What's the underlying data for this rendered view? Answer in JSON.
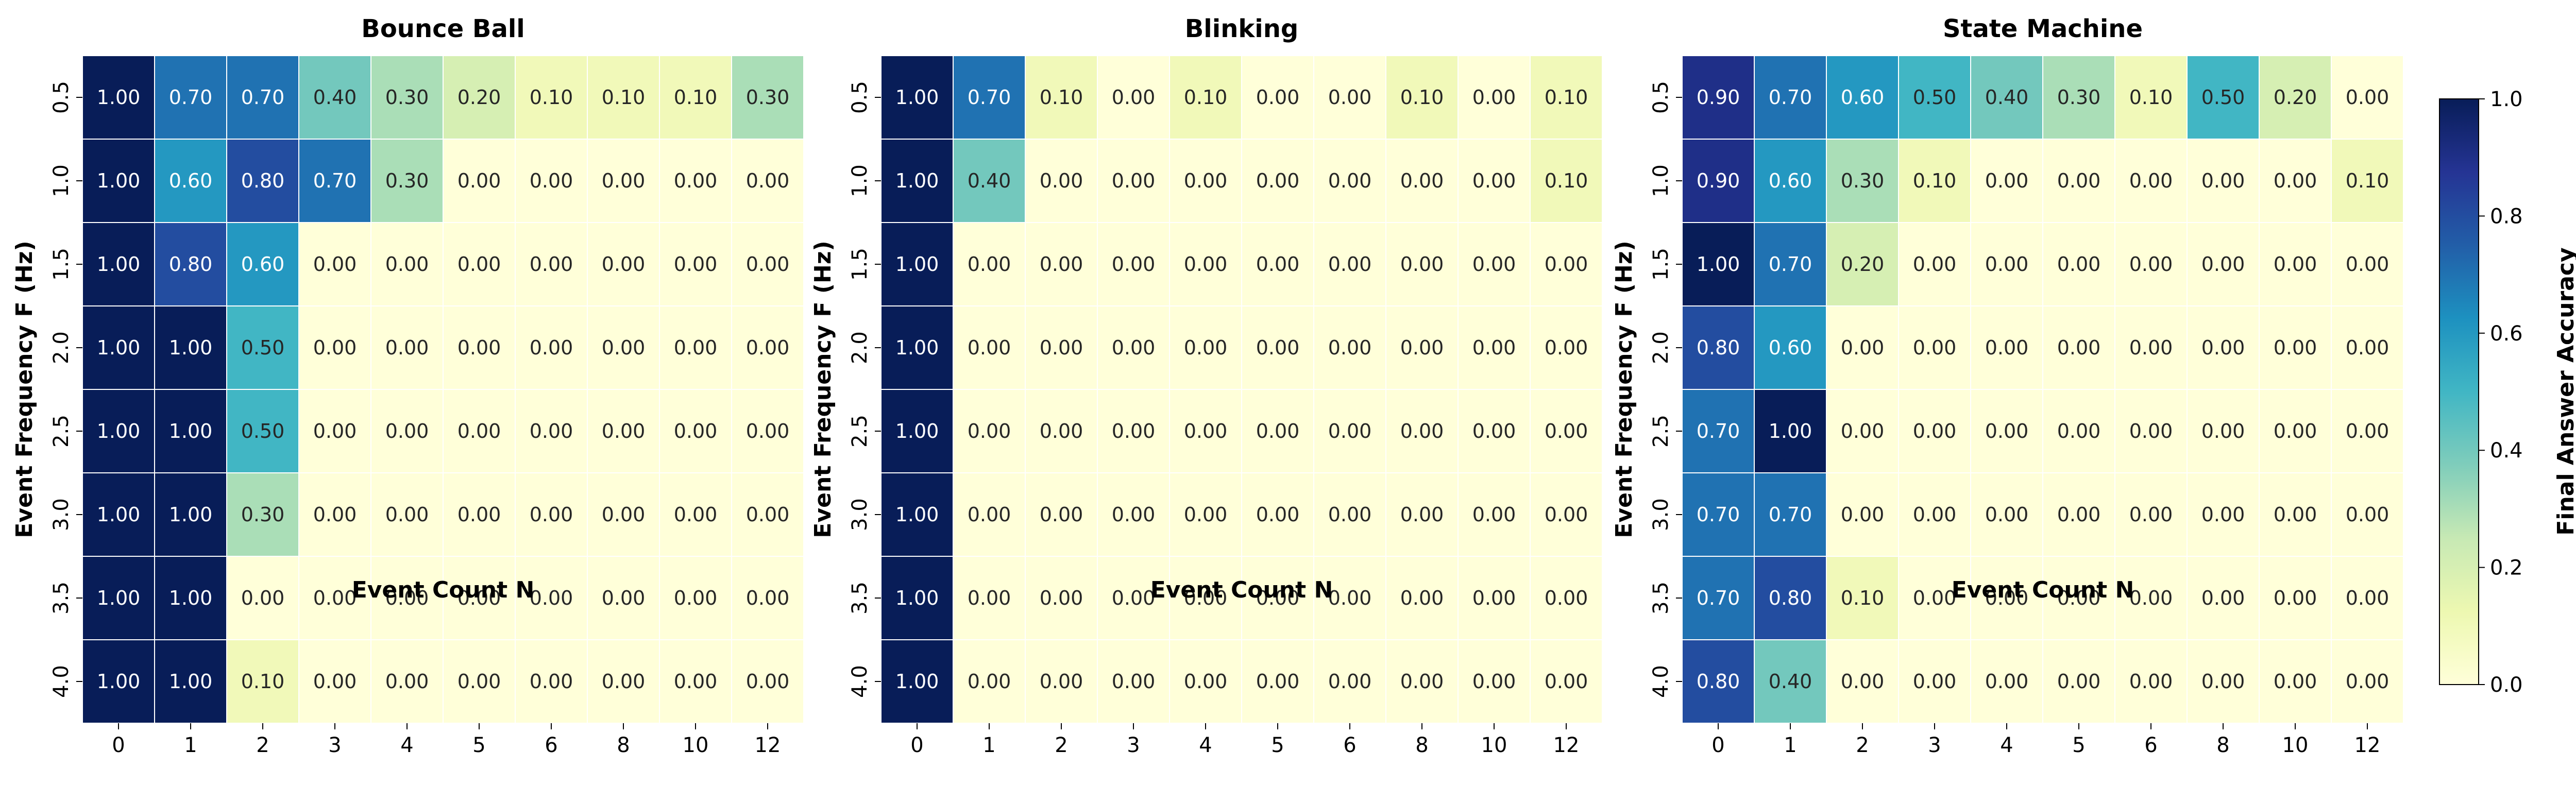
{
  "chart_data": [
    {
      "type": "heatmap",
      "title": "Bounce Ball",
      "xlabel": "Event Count N",
      "ylabel": "Event Frequency F (Hz)",
      "x": [
        "0",
        "1",
        "2",
        "3",
        "4",
        "5",
        "6",
        "8",
        "10",
        "12"
      ],
      "y": [
        "0.5",
        "1.0",
        "1.5",
        "2.0",
        "2.5",
        "3.0",
        "3.5",
        "4.0"
      ],
      "values": [
        [
          1.0,
          0.7,
          0.7,
          0.4,
          0.3,
          0.2,
          0.1,
          0.1,
          0.1,
          0.3
        ],
        [
          1.0,
          0.6,
          0.8,
          0.7,
          0.3,
          0.0,
          0.0,
          0.0,
          0.0,
          0.0
        ],
        [
          1.0,
          0.8,
          0.6,
          0.0,
          0.0,
          0.0,
          0.0,
          0.0,
          0.0,
          0.0
        ],
        [
          1.0,
          1.0,
          0.5,
          0.0,
          0.0,
          0.0,
          0.0,
          0.0,
          0.0,
          0.0
        ],
        [
          1.0,
          1.0,
          0.5,
          0.0,
          0.0,
          0.0,
          0.0,
          0.0,
          0.0,
          0.0
        ],
        [
          1.0,
          1.0,
          0.3,
          0.0,
          0.0,
          0.0,
          0.0,
          0.0,
          0.0,
          0.0
        ],
        [
          1.0,
          1.0,
          0.0,
          0.0,
          0.0,
          0.0,
          0.0,
          0.0,
          0.0,
          0.0
        ],
        [
          1.0,
          1.0,
          0.1,
          0.0,
          0.0,
          0.0,
          0.0,
          0.0,
          0.0,
          0.0
        ]
      ]
    },
    {
      "type": "heatmap",
      "title": "Blinking",
      "xlabel": "Event Count N",
      "ylabel": "Event Frequency F (Hz)",
      "x": [
        "0",
        "1",
        "2",
        "3",
        "4",
        "5",
        "6",
        "8",
        "10",
        "12"
      ],
      "y": [
        "0.5",
        "1.0",
        "1.5",
        "2.0",
        "2.5",
        "3.0",
        "3.5",
        "4.0"
      ],
      "values": [
        [
          1.0,
          0.7,
          0.1,
          0.0,
          0.1,
          0.0,
          0.0,
          0.1,
          0.0,
          0.1
        ],
        [
          1.0,
          0.4,
          0.0,
          0.0,
          0.0,
          0.0,
          0.0,
          0.0,
          0.0,
          0.1
        ],
        [
          1.0,
          0.0,
          0.0,
          0.0,
          0.0,
          0.0,
          0.0,
          0.0,
          0.0,
          0.0
        ],
        [
          1.0,
          0.0,
          0.0,
          0.0,
          0.0,
          0.0,
          0.0,
          0.0,
          0.0,
          0.0
        ],
        [
          1.0,
          0.0,
          0.0,
          0.0,
          0.0,
          0.0,
          0.0,
          0.0,
          0.0,
          0.0
        ],
        [
          1.0,
          0.0,
          0.0,
          0.0,
          0.0,
          0.0,
          0.0,
          0.0,
          0.0,
          0.0
        ],
        [
          1.0,
          0.0,
          0.0,
          0.0,
          0.0,
          0.0,
          0.0,
          0.0,
          0.0,
          0.0
        ],
        [
          1.0,
          0.0,
          0.0,
          0.0,
          0.0,
          0.0,
          0.0,
          0.0,
          0.0,
          0.0
        ]
      ]
    },
    {
      "type": "heatmap",
      "title": "State Machine",
      "xlabel": "Event Count N",
      "ylabel": "Event Frequency F (Hz)",
      "x": [
        "0",
        "1",
        "2",
        "3",
        "4",
        "5",
        "6",
        "8",
        "10",
        "12"
      ],
      "y": [
        "0.5",
        "1.0",
        "1.5",
        "2.0",
        "2.5",
        "3.0",
        "3.5",
        "4.0"
      ],
      "values": [
        [
          0.9,
          0.7,
          0.6,
          0.5,
          0.4,
          0.3,
          0.1,
          0.5,
          0.2,
          0.0
        ],
        [
          0.9,
          0.6,
          0.3,
          0.1,
          0.0,
          0.0,
          0.0,
          0.0,
          0.0,
          0.1
        ],
        [
          1.0,
          0.7,
          0.2,
          0.0,
          0.0,
          0.0,
          0.0,
          0.0,
          0.0,
          0.0
        ],
        [
          0.8,
          0.6,
          0.0,
          0.0,
          0.0,
          0.0,
          0.0,
          0.0,
          0.0,
          0.0
        ],
        [
          0.7,
          1.0,
          0.0,
          0.0,
          0.0,
          0.0,
          0.0,
          0.0,
          0.0,
          0.0
        ],
        [
          0.7,
          0.7,
          0.0,
          0.0,
          0.0,
          0.0,
          0.0,
          0.0,
          0.0,
          0.0
        ],
        [
          0.7,
          0.8,
          0.1,
          0.0,
          0.0,
          0.0,
          0.0,
          0.0,
          0.0,
          0.0
        ],
        [
          0.8,
          0.4,
          0.0,
          0.0,
          0.0,
          0.0,
          0.0,
          0.0,
          0.0,
          0.0
        ]
      ]
    }
  ],
  "colorbar": {
    "label": "Final Answer Accuracy",
    "range": [
      0.0,
      1.0
    ],
    "ticks": [
      "0.0",
      "0.2",
      "0.4",
      "0.6",
      "0.8",
      "1.0"
    ],
    "colormap": "YlGnBu",
    "colormap_stops": [
      "#ffffd9",
      "#edf8b1",
      "#c7e9b4",
      "#7fcdbb",
      "#41b6c4",
      "#1d91c0",
      "#225ea8",
      "#253494",
      "#081d58"
    ]
  }
}
